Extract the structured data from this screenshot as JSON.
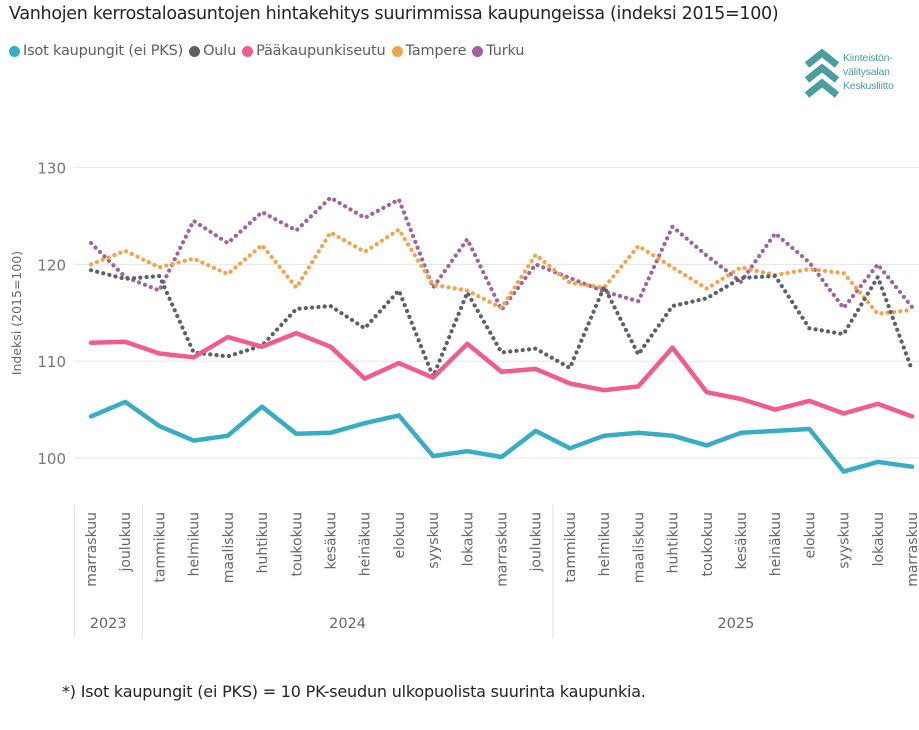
{
  "chart_data": {
    "type": "line",
    "title": "Vanhojen kerrostaloasuntojen hintakehitys suurimmissa kaupungeissa (indeksi 2015=100)",
    "xlabel": "",
    "ylabel": "Indeksi (2015=100)",
    "ylim": [
      95,
      132
    ],
    "yticks": [
      100,
      110,
      120,
      130
    ],
    "grid": true,
    "legend_position": "top-left",
    "categories": [
      "marraskuu",
      "joulukuu",
      "tammikuu",
      "helmikuu",
      "maaliskuu",
      "huhtikuu",
      "toukokuu",
      "kesäkuu",
      "heinäkuu",
      "elokuu",
      "syyskuu",
      "lokakuu",
      "marraskuu",
      "joulukuu",
      "tammikuu",
      "helmikuu",
      "maaliskuu",
      "huhtikuu",
      "toukokuu",
      "kesäkuu",
      "heinäkuu",
      "elokuu",
      "syyskuu",
      "lokakuu",
      "marraskuu"
    ],
    "year_groups": [
      {
        "label": "2023",
        "start": 0,
        "end": 1
      },
      {
        "label": "2024",
        "start": 2,
        "end": 13
      },
      {
        "label": "2025",
        "start": 14,
        "end": 24
      }
    ],
    "series": [
      {
        "name": "Isot kaupungit (ei PKS)",
        "color": "#37adc3",
        "style": "solid",
        "values": [
          104.3,
          105.8,
          103.3,
          101.8,
          102.3,
          105.3,
          102.5,
          102.6,
          103.6,
          104.4,
          100.2,
          100.7,
          100.1,
          102.8,
          101.0,
          102.3,
          102.6,
          102.3,
          101.3,
          102.6,
          102.8,
          103.0,
          98.6,
          99.6,
          99.1
        ]
      },
      {
        "name": "Oulu",
        "color": "#5b6266",
        "style": "dotted",
        "values": [
          119.4,
          118.5,
          118.8,
          110.9,
          110.5,
          111.6,
          115.4,
          115.7,
          113.4,
          117.3,
          108.4,
          117.1,
          110.9,
          111.3,
          109.3,
          117.7,
          110.7,
          115.7,
          116.5,
          118.6,
          118.8,
          113.4,
          112.8,
          118.7,
          109.1
        ]
      },
      {
        "name": "Pääkaupunkiseutu",
        "color": "#f35b8c",
        "style": "solid",
        "values": [
          111.9,
          112.0,
          110.8,
          110.4,
          112.5,
          111.5,
          112.9,
          111.5,
          108.2,
          109.8,
          108.3,
          111.8,
          108.9,
          109.2,
          107.7,
          107.0,
          107.4,
          111.4,
          106.8,
          106.1,
          105.0,
          105.9,
          104.6,
          105.6,
          104.3
        ]
      },
      {
        "name": "Tampere",
        "color": "#f5a34a",
        "style": "dotted",
        "values": [
          120.0,
          121.4,
          119.7,
          120.6,
          119.0,
          122.0,
          117.6,
          123.3,
          121.3,
          123.6,
          117.9,
          117.3,
          115.5,
          121.0,
          118.1,
          117.6,
          121.9,
          119.7,
          117.5,
          119.7,
          118.9,
          119.5,
          119.1,
          114.9,
          115.3
        ]
      },
      {
        "name": "Turku",
        "color": "#a0639e",
        "style": "dotted",
        "values": [
          122.2,
          118.7,
          117.3,
          124.5,
          122.2,
          125.4,
          123.5,
          126.9,
          124.8,
          126.7,
          117.6,
          122.6,
          115.3,
          120.0,
          118.6,
          117.2,
          116.2,
          123.9,
          120.9,
          118.2,
          123.2,
          120.2,
          115.5,
          120.0,
          115.6
        ]
      }
    ]
  },
  "logo": {
    "lines": [
      "Kiinteistön-",
      "välitysalan",
      "Keskusliitto"
    ],
    "color": "#4a9ea0"
  },
  "footnote": "*) Isot kaupungit (ei PKS) = 10 PK-seudun ulkopuolista suurinta kaupunkia."
}
